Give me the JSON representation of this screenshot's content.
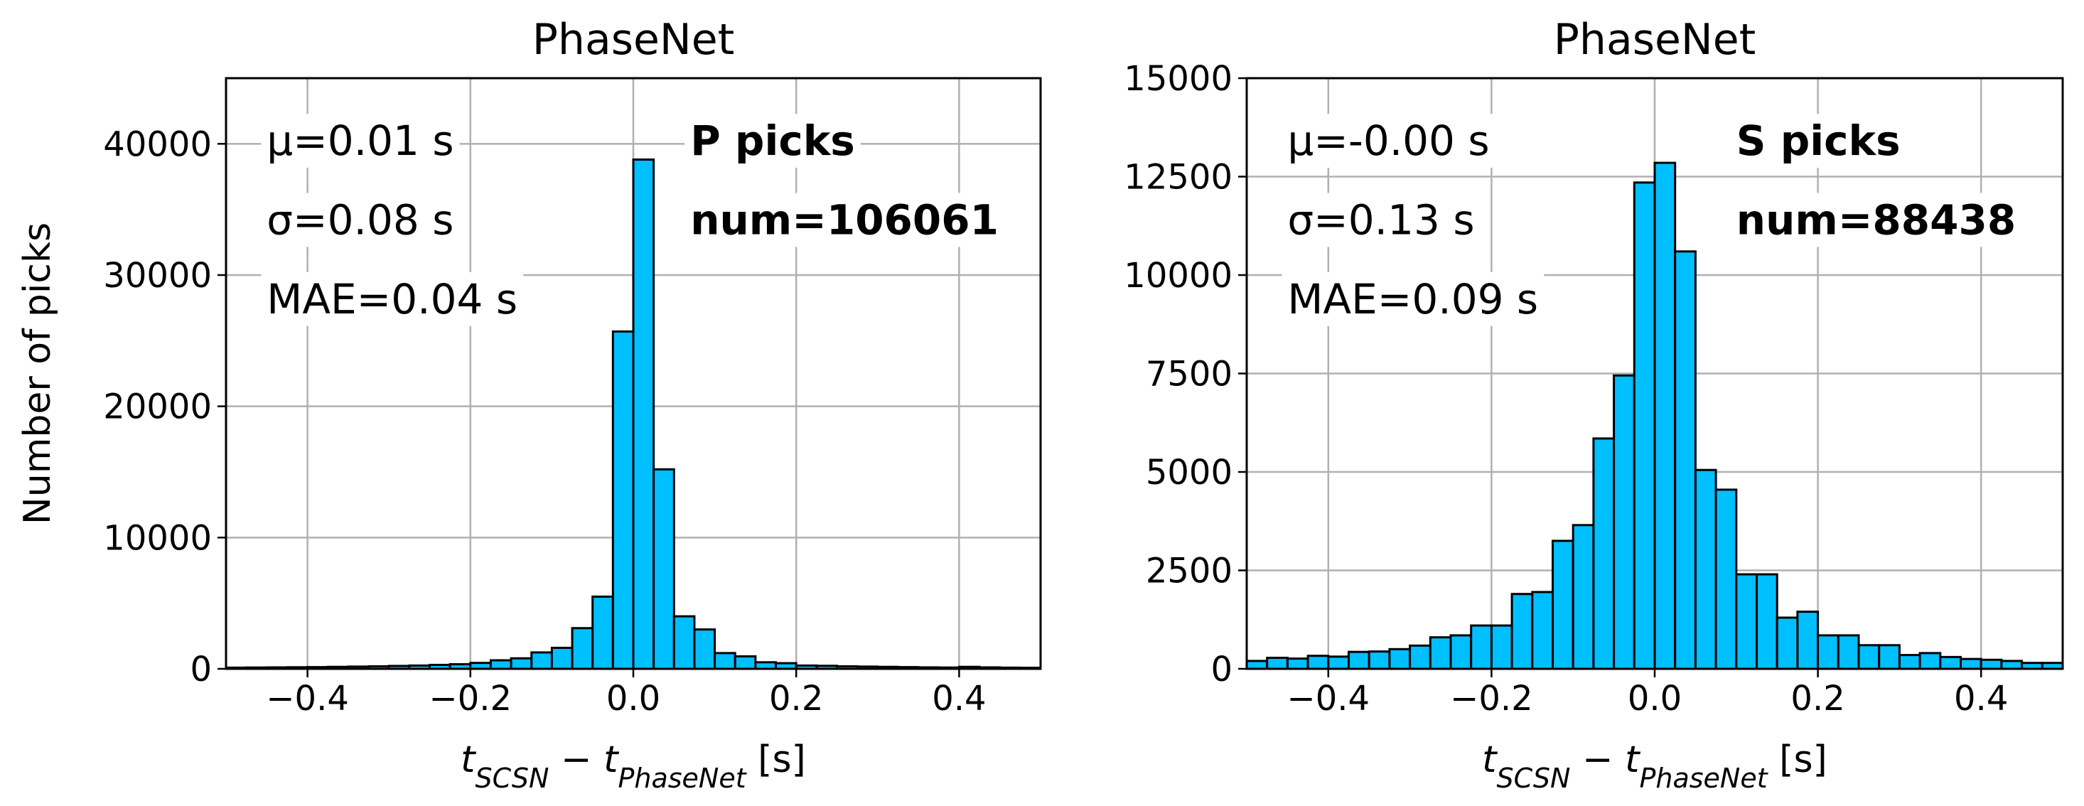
{
  "chart_data": [
    {
      "type": "histogram",
      "title": "PhaseNet",
      "ylabel": "Number of picks",
      "xlabel_parts": [
        "t",
        "SCSN",
        " − ",
        "t",
        "PhaseNet",
        " [s]"
      ],
      "color": "#00bfff",
      "edgecolor": "#000000",
      "grid": true,
      "bins": [
        -0.5,
        -0.475,
        -0.45,
        -0.425,
        -0.4,
        -0.375,
        -0.35,
        -0.325,
        -0.3,
        -0.275,
        -0.25,
        -0.225,
        -0.2,
        -0.175,
        -0.15,
        -0.125,
        -0.1,
        -0.075,
        -0.05,
        -0.025,
        0,
        0.025,
        0.05,
        0.075,
        0.1,
        0.125,
        0.15,
        0.175,
        0.2,
        0.225,
        0.25,
        0.275,
        0.3,
        0.325,
        0.35,
        0.375,
        0.4,
        0.425,
        0.45,
        0.475,
        0.5
      ],
      "values": [
        90,
        100,
        110,
        120,
        130,
        150,
        170,
        190,
        220,
        250,
        300,
        350,
        450,
        650,
        800,
        1250,
        1600,
        3100,
        5500,
        25700,
        38800,
        15200,
        4000,
        3000,
        1200,
        950,
        500,
        430,
        250,
        230,
        190,
        170,
        150,
        130,
        110,
        100,
        150,
        110,
        90,
        80
      ],
      "xlim": [
        -0.5,
        0.5
      ],
      "ylim": [
        0,
        45000
      ],
      "xticks": [
        {
          "value": -0.4,
          "label": "−0.4"
        },
        {
          "value": -0.2,
          "label": "−0.2"
        },
        {
          "value": 0,
          "label": "0.0"
        },
        0.2,
        0.4
      ],
      "yticks": [
        0,
        10000,
        20000,
        30000,
        40000
      ],
      "stats": [
        "μ=0.01 s",
        "σ=0.08 s",
        "MAE=0.04 s"
      ],
      "picks": [
        "P picks",
        "num=106061"
      ]
    },
    {
      "type": "histogram",
      "title": "PhaseNet",
      "xlabel_parts": [
        "t",
        "SCSN",
        " − ",
        "t",
        "PhaseNet",
        " [s]"
      ],
      "color": "#00bfff",
      "edgecolor": "#000000",
      "grid": true,
      "bins": [
        -0.5,
        -0.475,
        -0.45,
        -0.425,
        -0.4,
        -0.375,
        -0.35,
        -0.325,
        -0.3,
        -0.275,
        -0.25,
        -0.225,
        -0.2,
        -0.175,
        -0.15,
        -0.125,
        -0.1,
        -0.075,
        -0.05,
        -0.025,
        0,
        0.025,
        0.05,
        0.075,
        0.1,
        0.125,
        0.15,
        0.175,
        0.2,
        0.225,
        0.25,
        0.275,
        0.3,
        0.325,
        0.35,
        0.375,
        0.4,
        0.425,
        0.45,
        0.475,
        0.5
      ],
      "values": [
        200,
        280,
        260,
        330,
        310,
        430,
        440,
        500,
        590,
        800,
        850,
        1100,
        1100,
        1900,
        1950,
        3250,
        3650,
        5850,
        7450,
        12350,
        12850,
        10600,
        5050,
        4550,
        2400,
        2400,
        1300,
        1450,
        850,
        850,
        600,
        600,
        350,
        400,
        300,
        250,
        230,
        200,
        150,
        150
      ],
      "xlim": [
        -0.5,
        0.5
      ],
      "ylim": [
        0,
        15000
      ],
      "xticks": [
        {
          "value": -0.4,
          "label": "−0.4"
        },
        {
          "value": -0.2,
          "label": "−0.2"
        },
        {
          "value": 0,
          "label": "0.0"
        },
        0.2,
        0.4
      ],
      "yticks": [
        0,
        2500,
        5000,
        7500,
        10000,
        12500,
        15000
      ],
      "stats": [
        "μ=-0.00 s",
        "σ=0.13 s",
        "MAE=0.09 s"
      ],
      "picks": [
        "S picks",
        "num=88438"
      ]
    }
  ]
}
